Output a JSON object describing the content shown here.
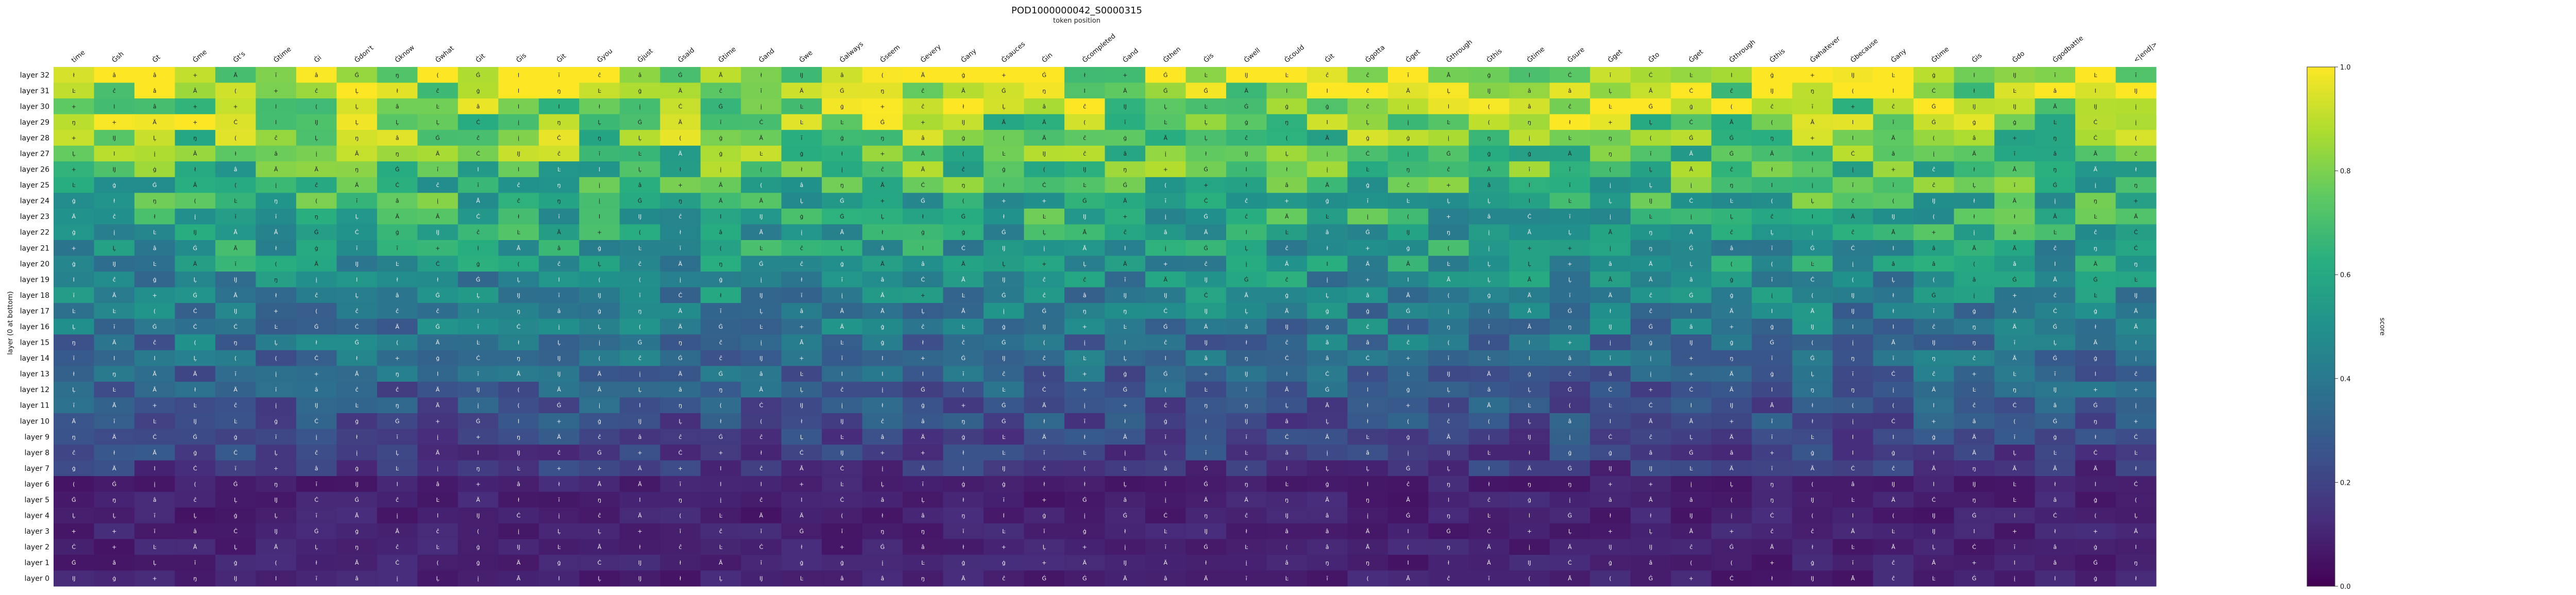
{
  "chart_data": {
    "type": "heatmap",
    "title": "POD1000000042_S0000315",
    "xlabel": "token position",
    "ylabel": "layer (0 at bottom)",
    "colorbar_label": "score",
    "colormap": "viridis",
    "vmin": 0.0,
    "vmax": 1.0,
    "colorbar_ticks": [
      "0.0",
      "0.2",
      "0.4",
      "0.6",
      "0.8",
      "1.0"
    ],
    "x_tokens": [
      "time",
      "Ġsh",
      "Ġt",
      "Ġme",
      "Ġt's",
      "Ġtime",
      "Ġi",
      "Ġdon't",
      "Ġknow",
      "Ġwhat",
      "Ġit",
      "Ġis",
      "Ġit",
      "Ġyou",
      "Ġjust",
      "Ġsaid",
      "Ġtime",
      "Ġand",
      "Ġwe",
      "Ġalways",
      "Ġseem",
      "Ġevery",
      "Ġany",
      "Ġsauces",
      "Ġin",
      "Ġcompleted",
      "Ġand",
      "Ġthen",
      "Ġis",
      "Ġwell",
      "Ġcould",
      "Ġit",
      "Ġgotta",
      "Ġget",
      "Ġthrough",
      "Ġthis",
      "Ġtime",
      "Ġsure",
      "Ġget",
      "Ġto",
      "Ġget",
      "Ġthrough",
      "Ġthis",
      "Ġwhatever",
      "Ġbecause",
      "Ġany",
      "Ġtime",
      "Ġis",
      "Ġdo",
      "Ġgodbattle",
      "",
      "<|end|>"
    ],
    "y_labels": [
      "layer 32",
      "layer 31",
      "layer 30",
      "layer 29",
      "layer 28",
      "layer 27",
      "layer 26",
      "layer 25",
      "layer 24",
      "layer 23",
      "layer 22",
      "layer 21",
      "layer 20",
      "layer 19",
      "layer 18",
      "layer 17",
      "layer 16",
      "layer 15",
      "layer 14",
      "layer 13",
      "layer 12",
      "layer 11",
      "layer 10",
      "layer 9",
      "layer 8",
      "layer 7",
      "layer 6",
      "layer 5",
      "layer 4",
      "layer 3",
      "layer 2",
      "layer 1",
      "layer 0"
    ],
    "cell_glyphs": [
      "I",
      "ĉ",
      "+",
      "Ä",
      "Ġ",
      "Ļ",
      "Ċ",
      "ģ",
      "ł",
      "Ĳ",
      "Ŀ",
      "â",
      "į",
      "Ā",
      "(",
      "ŋ",
      "ĭ"
    ],
    "grid": false,
    "legend": "colorbar-right"
  }
}
